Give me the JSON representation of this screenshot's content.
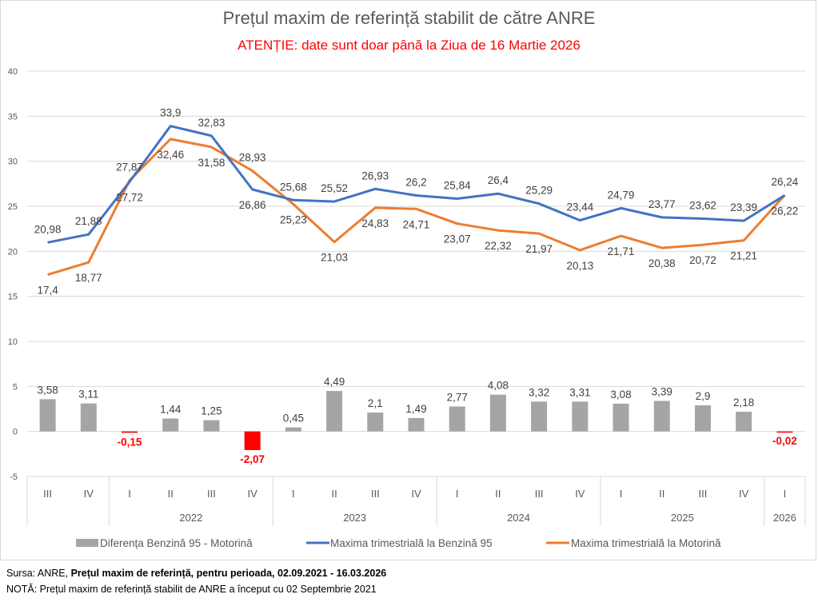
{
  "chart_data": {
    "type": "bar+line",
    "title": "Prețul maxim de referință stabilit de către ANRE",
    "subtitle": "ATENȚIE: date sunt doar până la Ziua de 16 Martie 2026",
    "xlabel": "",
    "ylabel": "",
    "ylim": [
      -5,
      40
    ],
    "yticks": [
      "-5",
      "0",
      "5",
      "10",
      "15",
      "20",
      "25",
      "30",
      "35",
      "40"
    ],
    "ytick_values": [
      -5,
      0,
      5,
      10,
      15,
      20,
      25,
      30,
      35,
      40
    ],
    "grid": true,
    "legend_position": "bottom",
    "categories": [
      "III",
      "IV",
      "I",
      "II",
      "III",
      "IV",
      "I",
      "II",
      "III",
      "IV",
      "I",
      "II",
      "III",
      "IV",
      "I",
      "II",
      "III",
      "IV",
      "I"
    ],
    "year_groups": [
      {
        "label": "",
        "count": 2
      },
      {
        "label": "2022",
        "count": 4
      },
      {
        "label": "2023",
        "count": 4
      },
      {
        "label": "2024",
        "count": 4
      },
      {
        "label": "2025",
        "count": 4
      },
      {
        "label": "2026",
        "count": 1
      }
    ],
    "series": [
      {
        "name": "Diferența Benzină 95 - Motorină",
        "kind": "bar",
        "color": "#a5a5a5",
        "negative_color": "#ff0000",
        "values": [
          3.58,
          3.11,
          -0.15,
          1.44,
          1.25,
          -2.07,
          0.45,
          4.49,
          2.1,
          1.49,
          2.77,
          4.08,
          3.32,
          3.31,
          3.08,
          3.39,
          2.9,
          2.18,
          -0.02
        ],
        "labels": [
          "3,58",
          "3,11",
          "-0,15",
          "1,44",
          "1,25",
          "-2,07",
          "0,45",
          "4,49",
          "2,1",
          "1,49",
          "2,77",
          "4,08",
          "3,32",
          "3,31",
          "3,08",
          "3,39",
          "2,9",
          "2,18",
          "-0,02"
        ]
      },
      {
        "name": "Maxima trimestrială la Benzină 95",
        "kind": "line",
        "color": "#4472c4",
        "values": [
          20.98,
          21.88,
          27.72,
          33.9,
          32.83,
          26.86,
          25.68,
          25.52,
          26.93,
          26.2,
          25.84,
          26.4,
          25.29,
          23.44,
          24.79,
          23.77,
          23.62,
          23.39,
          26.22
        ],
        "labels": [
          "20,98",
          "21,88",
          "27,72",
          "33,9",
          "32,83",
          "26,86",
          "25,68",
          "25,52",
          "26,93",
          "26,2",
          "25,84",
          "26,4",
          "25,29",
          "23,44",
          "24,79",
          "23,77",
          "23,62",
          "23,39",
          "26,22"
        ]
      },
      {
        "name": "Maxima trimestrială la Motorină",
        "kind": "line",
        "color": "#ed7d31",
        "values": [
          17.4,
          18.77,
          27.87,
          32.46,
          31.58,
          28.93,
          25.23,
          21.03,
          24.83,
          24.71,
          23.07,
          22.32,
          21.97,
          20.13,
          21.71,
          20.38,
          20.72,
          21.21,
          26.24
        ],
        "labels": [
          "17,4",
          "18,77",
          "27,87",
          "32,46",
          "31,58",
          "28,93",
          "25,23",
          "21,03",
          "24,83",
          "24,71",
          "23,07",
          "22,32",
          "21,97",
          "20,13",
          "21,71",
          "20,38",
          "20,72",
          "21,21",
          "26,24"
        ]
      }
    ]
  },
  "footer": {
    "source_prefix": "Sursa: ANRE, ",
    "source_bold": "Prețul maxim de referință, pentru perioada, 02.09.2021 - 16.03.2026",
    "note": "NOTĂ:  Prețul maxim de referință stabilit de ANRE a început cu 02 Septembrie 2021"
  }
}
